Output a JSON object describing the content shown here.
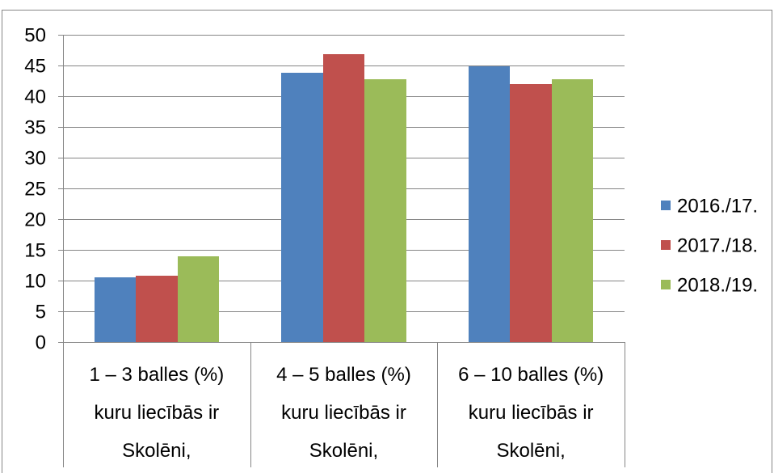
{
  "chart_data": {
    "type": "bar",
    "categories": [
      "1 – 3 balles (%)",
      "4 – 5 balles (%)",
      "6 – 10 balles (%)"
    ],
    "category_sublabels": [
      [
        "kuru liecībās ir",
        "Skolēni,"
      ],
      [
        "kuru liecībās ir",
        "Skolēni,"
      ],
      [
        "kuru liecībās ir",
        "Skolēni,"
      ]
    ],
    "series": [
      {
        "name": "2016./17.",
        "color": "#4F81BD",
        "values": [
          10.5,
          43.8,
          44.9
        ]
      },
      {
        "name": "2017./18.",
        "color": "#C0504D",
        "values": [
          10.8,
          46.9,
          42.0
        ]
      },
      {
        "name": "2018./19.",
        "color": "#9BBB59",
        "values": [
          13.9,
          42.8,
          42.8
        ]
      }
    ],
    "ylim": [
      0,
      50
    ],
    "yticks": [
      0,
      5,
      10,
      15,
      20,
      25,
      30,
      35,
      40,
      45,
      50
    ],
    "grid": true,
    "legend_position": "right"
  }
}
